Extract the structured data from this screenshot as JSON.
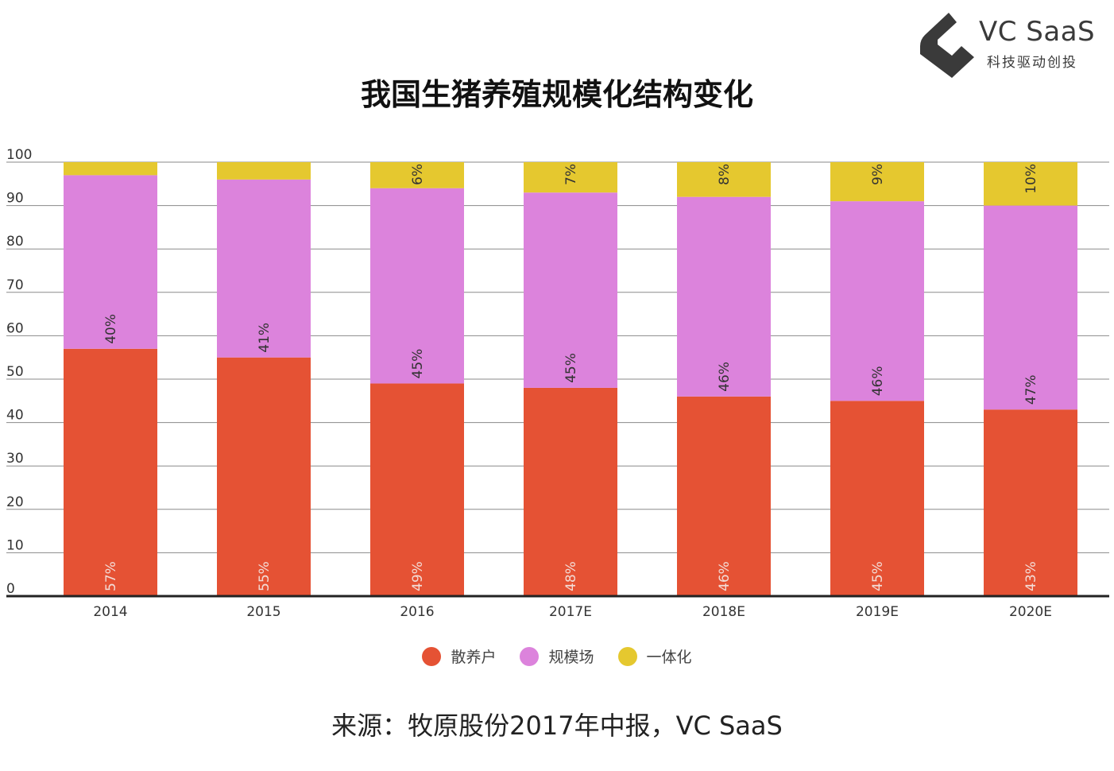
{
  "title": "我国生猪养殖规模化结构变化",
  "logo": {
    "name": "VC SaaS",
    "tagline": "科技驱动创投",
    "color": "#3a3a3a"
  },
  "source": "来源：牧原股份2017年中报，VC SaaS",
  "chart_data": {
    "type": "bar",
    "stacked": true,
    "categories": [
      "2014",
      "2015",
      "2016",
      "2017E",
      "2018E",
      "2019E",
      "2020E"
    ],
    "ylim": [
      0,
      100
    ],
    "yticks": [
      0,
      10,
      20,
      30,
      40,
      50,
      60,
      70,
      80,
      90,
      100
    ],
    "grid": true,
    "legend_position": "bottom",
    "series": [
      {
        "name": "散养户",
        "color": "#e55234",
        "values": [
          57,
          55,
          49,
          48,
          46,
          45,
          43
        ],
        "labels": [
          "57%",
          "55%",
          "49%",
          "48%",
          "46%",
          "45%",
          "43%"
        ]
      },
      {
        "name": "规模场",
        "color": "#dc83dc",
        "values": [
          40,
          41,
          45,
          45,
          46,
          46,
          47
        ],
        "labels": [
          "40%",
          "41%",
          "45%",
          "45%",
          "46%",
          "46%",
          "47%"
        ]
      },
      {
        "name": "一体化",
        "color": "#e5c82f",
        "values": [
          3,
          4,
          6,
          7,
          8,
          9,
          10
        ],
        "labels": [
          "",
          "",
          "6%",
          "7%",
          "8%",
          "9%",
          "10%"
        ]
      }
    ]
  }
}
